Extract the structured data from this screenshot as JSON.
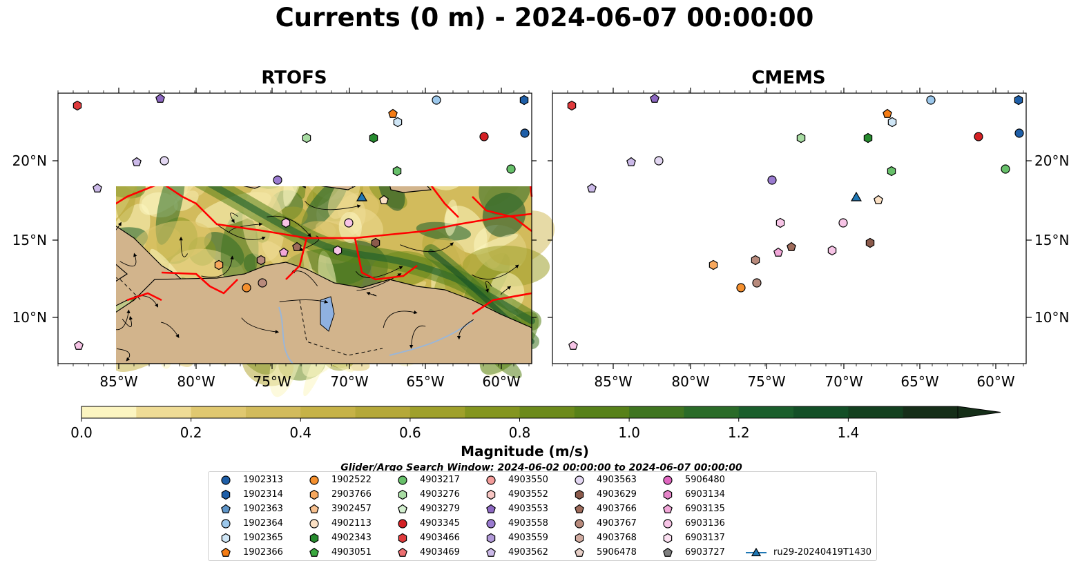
{
  "title": "Currents (0 m) - 2024-06-07 00:00:00",
  "panels": [
    {
      "title": "RTOFS"
    },
    {
      "title": "CMEMS"
    }
  ],
  "axes": {
    "lon_ticks": [
      "85°W",
      "80°W",
      "75°W",
      "70°W",
      "65°W",
      "60°W"
    ],
    "lat_ticks": [
      "20°N",
      "15°N",
      "10°N"
    ]
  },
  "colorbar": {
    "label": "Magnitude (m/s)",
    "ticks": [
      "0.0",
      "0.2",
      "0.4",
      "0.6",
      "0.8",
      "1.0",
      "1.2",
      "1.4"
    ],
    "range": [
      0,
      1.6
    ],
    "extend": "max",
    "colors": [
      "#fcf5c1",
      "#efdc96",
      "#e0c870",
      "#d2bb5c",
      "#c6b247",
      "#b5a839",
      "#9fa02b",
      "#84951f",
      "#6c8a1b",
      "#578119",
      "#3f7520",
      "#2a6b28",
      "#1a5e2c",
      "#134f27",
      "#13401f",
      "#152e18"
    ]
  },
  "window_note": "Glider/Argo Search Window: 2024-06-02 00:00:00 to 2024-06-07 00:00:00",
  "legend": [
    {
      "label": "1902313",
      "marker": "circle",
      "color": "#1f5fa8"
    },
    {
      "label": "1902314",
      "marker": "hexagon",
      "color": "#1f5fa8"
    },
    {
      "label": "1902363",
      "marker": "pentagon",
      "color": "#5f95c8"
    },
    {
      "label": "1902364",
      "marker": "circle",
      "color": "#9cc8ec"
    },
    {
      "label": "1902365",
      "marker": "hexagon",
      "color": "#cfe6f6"
    },
    {
      "label": "1902366",
      "marker": "pentagon",
      "color": "#f57c14"
    },
    {
      "label": "1902522",
      "marker": "circle",
      "color": "#f5902e"
    },
    {
      "label": "2903766",
      "marker": "hexagon",
      "color": "#f7a85e"
    },
    {
      "label": "3902457",
      "marker": "pentagon",
      "color": "#f7c08f"
    },
    {
      "label": "4902113",
      "marker": "circle",
      "color": "#fbe0c4"
    },
    {
      "label": "4902343",
      "marker": "hexagon",
      "color": "#268b2e"
    },
    {
      "label": "4903051",
      "marker": "pentagon",
      "color": "#3aa83f"
    },
    {
      "label": "4903217",
      "marker": "circle",
      "color": "#67c06a"
    },
    {
      "label": "4903276",
      "marker": "hexagon",
      "color": "#a8dca3"
    },
    {
      "label": "4903279",
      "marker": "pentagon",
      "color": "#d3efcf"
    },
    {
      "label": "4903345",
      "marker": "circle",
      "color": "#d42024"
    },
    {
      "label": "4903466",
      "marker": "hexagon",
      "color": "#df3a3c"
    },
    {
      "label": "4903469",
      "marker": "pentagon",
      "color": "#ec6e70"
    },
    {
      "label": "4903550",
      "marker": "circle",
      "color": "#f39c9a"
    },
    {
      "label": "4903552",
      "marker": "hexagon",
      "color": "#f8c6c3"
    },
    {
      "label": "4903553",
      "marker": "pentagon",
      "color": "#8d68c2"
    },
    {
      "label": "4903558",
      "marker": "circle",
      "color": "#9a7bd0"
    },
    {
      "label": "4903559",
      "marker": "hexagon",
      "color": "#b29ad9"
    },
    {
      "label": "4903562",
      "marker": "pentagon",
      "color": "#cbb9e8"
    },
    {
      "label": "4903563",
      "marker": "circle",
      "color": "#e3d7f2"
    },
    {
      "label": "4903629",
      "marker": "hexagon",
      "color": "#8b5a4b"
    },
    {
      "label": "4903766",
      "marker": "pentagon",
      "color": "#9e6b5b"
    },
    {
      "label": "4903767",
      "marker": "circle",
      "color": "#b88a7c"
    },
    {
      "label": "4903768",
      "marker": "hexagon",
      "color": "#d1aba0"
    },
    {
      "label": "5906478",
      "marker": "pentagon",
      "color": "#e7cfc7"
    },
    {
      "label": "5906480",
      "marker": "circle",
      "color": "#e066c0"
    },
    {
      "label": "6903134",
      "marker": "hexagon",
      "color": "#e685c9"
    },
    {
      "label": "6903135",
      "marker": "pentagon",
      "color": "#f2a7d9"
    },
    {
      "label": "6903136",
      "marker": "circle",
      "color": "#f7c4e6"
    },
    {
      "label": "6903137",
      "marker": "hexagon",
      "color": "#fbe0f1"
    },
    {
      "label": "6903727",
      "marker": "pentagon",
      "color": "#7f7f7f"
    },
    {
      "label": "ru29-20240419T1430",
      "marker": "triangle-line",
      "color": "#1f77b4"
    }
  ]
}
